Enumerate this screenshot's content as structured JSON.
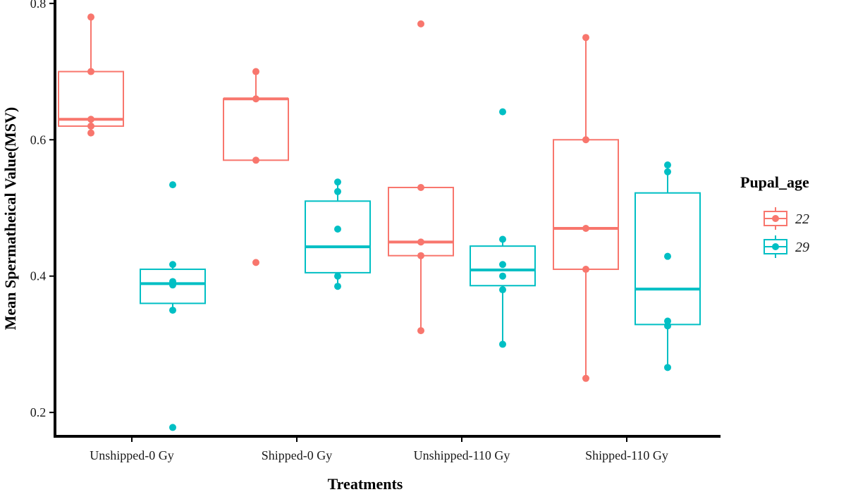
{
  "chart_data": {
    "type": "boxplot",
    "xlabel": "Treatments",
    "ylabel": "Mean Spermatheical Value(MSV)",
    "ylim": [
      0.165,
      0.805
    ],
    "yticks": [
      "0.2",
      "0.4",
      "0.6",
      "0.8"
    ],
    "categories": [
      "Unshipped-0  Gy",
      "Shipped-0  Gy",
      "Unshipped-110  Gy",
      "Shipped-110  Gy"
    ],
    "legend": {
      "title": "Pupal_age",
      "position": "right",
      "entries": [
        "22",
        "29"
      ]
    },
    "grid": false,
    "series": [
      {
        "name": "22",
        "color": "#F8766D",
        "boxes": [
          {
            "min": 0.61,
            "q1": 0.62,
            "median": 0.63,
            "q3": 0.7,
            "max": 0.78,
            "points": [
              0.78,
              0.7,
              0.63,
              0.62,
              0.61
            ]
          },
          {
            "min": 0.57,
            "q1": 0.57,
            "median": 0.66,
            "q3": 0.66,
            "max": 0.7,
            "points": [
              0.7,
              0.66,
              0.57,
              0.42
            ],
            "outliers": [
              0.42
            ]
          },
          {
            "min": 0.32,
            "q1": 0.43,
            "median": 0.45,
            "q3": 0.53,
            "max": 0.53,
            "points": [
              0.77,
              0.53,
              0.45,
              0.43,
              0.32
            ],
            "outliers": [
              0.77
            ]
          },
          {
            "min": 0.25,
            "q1": 0.41,
            "median": 0.47,
            "q3": 0.6,
            "max": 0.75,
            "points": [
              0.75,
              0.6,
              0.47,
              0.41,
              0.25
            ]
          }
        ]
      },
      {
        "name": "29",
        "color": "#00BFC4",
        "boxes": [
          {
            "min": 0.35,
            "q1": 0.36,
            "median": 0.389,
            "q3": 0.41,
            "max": 0.417,
            "points": [
              0.534,
              0.417,
              0.392,
              0.387,
              0.35,
              0.178
            ],
            "outliers": [
              0.534,
              0.178
            ]
          },
          {
            "min": 0.385,
            "q1": 0.405,
            "median": 0.443,
            "q3": 0.51,
            "max": 0.538,
            "points": [
              0.538,
              0.524,
              0.469,
              0.4,
              0.385
            ]
          },
          {
            "min": 0.3,
            "q1": 0.386,
            "median": 0.409,
            "q3": 0.444,
            "max": 0.454,
            "points": [
              0.641,
              0.454,
              0.417,
              0.4,
              0.38,
              0.3
            ],
            "outliers": [
              0.641
            ]
          },
          {
            "min": 0.266,
            "q1": 0.329,
            "median": 0.381,
            "q3": 0.522,
            "max": 0.563,
            "points": [
              0.563,
              0.553,
              0.429,
              0.334,
              0.327,
              0.266
            ]
          }
        ]
      }
    ]
  }
}
